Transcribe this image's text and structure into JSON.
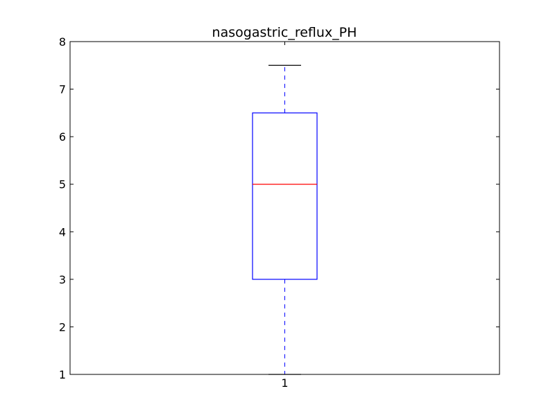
{
  "chart_data": {
    "type": "box",
    "title": "nasogastric_reflux_PH",
    "xlabel": "",
    "ylabel": "",
    "categories": [
      "1"
    ],
    "boxes": [
      {
        "category": "1",
        "whisker_low": 1,
        "q1": 3,
        "median": 5,
        "q3": 6.5,
        "whisker_high": 7.5
      }
    ],
    "ylim": [
      1,
      8
    ],
    "yticks": [
      "1",
      "2",
      "3",
      "4",
      "5",
      "6",
      "7",
      "8"
    ],
    "grid": false,
    "colors": {
      "box": "#0000ff",
      "median": "#ff0000",
      "whisker": "#0000ff",
      "cap": "#000000",
      "axes": "#000000"
    }
  }
}
